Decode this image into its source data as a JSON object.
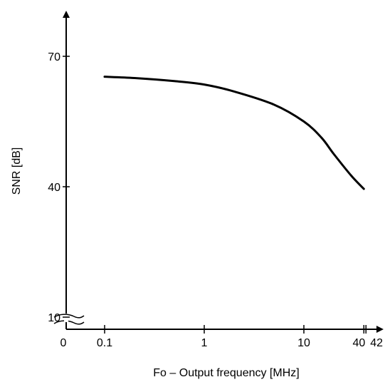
{
  "chart_data": {
    "type": "line",
    "title": "",
    "xlabel": "Fo – Output frequency [MHz]",
    "ylabel": "SNR [dB]",
    "x_scale": "log",
    "x_ticks": [
      {
        "value": 0.1,
        "label": "0.1"
      },
      {
        "value": 1,
        "label": "1"
      },
      {
        "value": 10,
        "label": "10"
      },
      {
        "value": 40,
        "label": "40"
      },
      {
        "value": 42,
        "label": "42"
      }
    ],
    "x_origin_label": "0",
    "y_ticks": [
      {
        "value": 10,
        "label": "10"
      },
      {
        "value": 40,
        "label": "40"
      },
      {
        "value": 70,
        "label": "70"
      }
    ],
    "grid": false,
    "legend": "none",
    "line_color": "#000000",
    "series": [
      {
        "x": [
          0.1,
          0.2,
          0.5,
          1,
          2,
          5,
          10,
          15,
          20,
          30,
          40
        ],
        "values": [
          65.3,
          65.0,
          64.3,
          63.5,
          61.9,
          58.9,
          55.0,
          51.3,
          47.5,
          42.5,
          39.5
        ]
      }
    ]
  }
}
